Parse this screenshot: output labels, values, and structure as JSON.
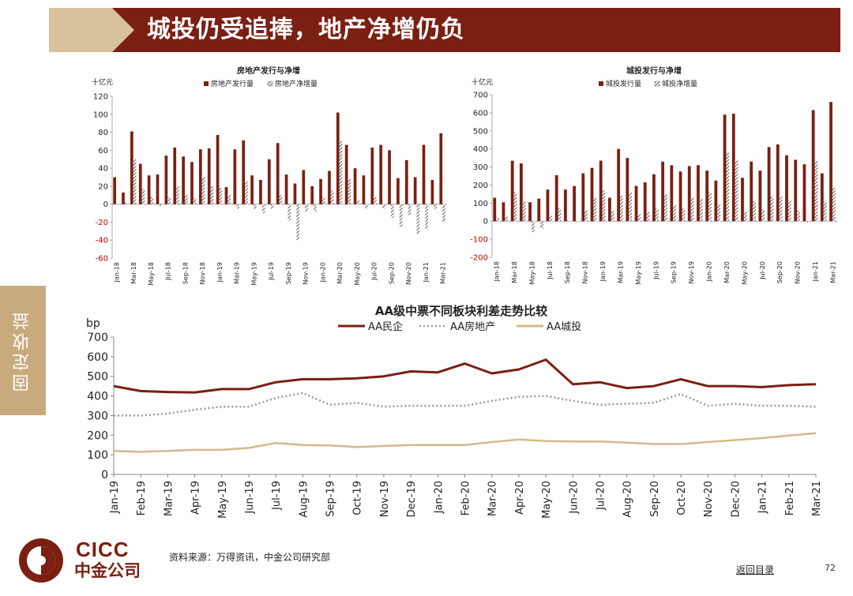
{
  "header": {
    "title": "城投仍受追捧，地产净增仍负"
  },
  "sidebar": {
    "label": "固定收益"
  },
  "footer": {
    "source": "资料来源：万得资讯，中金公司研究部",
    "back_link": "返回目录",
    "page_number": "72"
  },
  "logo": {
    "en": "CICC",
    "cn": "中金公司"
  },
  "colors": {
    "brand": "#7b1f12",
    "tan": "#d8c29b",
    "net": "#333333",
    "pvt": "#7b1f12",
    "re_line": "#9a9a9a",
    "ct_line": "#d4b98c"
  },
  "chart_data": [
    {
      "type": "bar",
      "title": "房地产发行与净增",
      "unit": "十亿元",
      "ylim": [
        -60,
        120
      ],
      "yticks": [
        "120",
        "100",
        "80",
        "60",
        "40",
        "20",
        "0",
        "-20",
        "-40",
        "-60"
      ],
      "categories": [
        "Jan-18",
        "Feb-18",
        "Mar-18",
        "Apr-18",
        "May-18",
        "Jun-18",
        "Jul-18",
        "Aug-18",
        "Sep-18",
        "Oct-18",
        "Nov-18",
        "Dec-18",
        "Jan-19",
        "Feb-19",
        "Mar-19",
        "Apr-19",
        "May-19",
        "Jun-19",
        "Jul-19",
        "Aug-19",
        "Sep-19",
        "Oct-19",
        "Nov-19",
        "Dec-19",
        "Jan-20",
        "Feb-20",
        "Mar-20",
        "Apr-20",
        "May-20",
        "Jun-20",
        "Jul-20",
        "Aug-20",
        "Sep-20",
        "Oct-20",
        "Nov-20",
        "Dec-20",
        "Jan-21",
        "Feb-21",
        "Mar-21"
      ],
      "xtick_labels": [
        "Jan-18",
        "Mar-18",
        "May-18",
        "Jul-18",
        "Sep-18",
        "Nov-18",
        "Jan-19",
        "Mar-19",
        "May-19",
        "Jul-19",
        "Sep-19",
        "Nov-19",
        "Jan-20",
        "Mar-20",
        "May-20",
        "Jul-20",
        "Sep-20",
        "Nov-20",
        "Jan-21",
        "Mar-21"
      ],
      "series": [
        {
          "name": "房地产发行量",
          "values": [
            30,
            13,
            81,
            45,
            32,
            33,
            54,
            63,
            53,
            47,
            61,
            62,
            77,
            19,
            61,
            71,
            32,
            27,
            50,
            68,
            33,
            23,
            38,
            20,
            28,
            37,
            102,
            66,
            40,
            32,
            63,
            66,
            60,
            29,
            49,
            30,
            66,
            27,
            79
          ]
        },
        {
          "name": "房地产净增量",
          "values": [
            0,
            2,
            50,
            17,
            8,
            -2,
            8,
            20,
            10,
            7,
            30,
            20,
            18,
            10,
            -5,
            25,
            -5,
            -10,
            -5,
            10,
            -18,
            -40,
            -8,
            -8,
            8,
            15,
            70,
            28,
            5,
            -5,
            8,
            -5,
            -15,
            -25,
            -12,
            -33,
            -28,
            -5,
            -20
          ]
        }
      ]
    },
    {
      "type": "bar",
      "title": "城投发行与净增",
      "unit": "十亿元",
      "ylim": [
        -200,
        700
      ],
      "yticks": [
        "700",
        "600",
        "500",
        "400",
        "300",
        "200",
        "100",
        "0",
        "-100",
        "-200"
      ],
      "categories": [
        "Jan-18",
        "Feb-18",
        "Mar-18",
        "Apr-18",
        "May-18",
        "Jun-18",
        "Jul-18",
        "Aug-18",
        "Sep-18",
        "Oct-18",
        "Nov-18",
        "Dec-18",
        "Jan-19",
        "Feb-19",
        "Mar-19",
        "Apr-19",
        "May-19",
        "Jun-19",
        "Jul-19",
        "Aug-19",
        "Sep-19",
        "Oct-19",
        "Nov-19",
        "Dec-19",
        "Jan-20",
        "Feb-20",
        "Mar-20",
        "Apr-20",
        "May-20",
        "Jun-20",
        "Jul-20",
        "Aug-20",
        "Sep-20",
        "Oct-20",
        "Nov-20",
        "Dec-20",
        "Jan-21",
        "Feb-21",
        "Mar-21"
      ],
      "xtick_labels": [
        "Jan-18",
        "Mar-18",
        "May-18",
        "Jul-18",
        "Sep-18",
        "Nov-18",
        "Jan-19",
        "Mar-19",
        "May-19",
        "Jul-19",
        "Sep-19",
        "Nov-19",
        "Jan-20",
        "Mar-20",
        "May-20",
        "Jul-20",
        "Sep-20",
        "Nov-20",
        "Jan-21",
        "Mar-21"
      ],
      "series": [
        {
          "name": "城投发行量",
          "values": [
            130,
            105,
            335,
            320,
            105,
            125,
            175,
            255,
            175,
            195,
            265,
            295,
            335,
            130,
            400,
            350,
            195,
            215,
            260,
            330,
            310,
            275,
            305,
            310,
            280,
            225,
            590,
            595,
            240,
            330,
            280,
            410,
            425,
            365,
            340,
            315,
            615,
            265,
            660
          ]
        },
        {
          "name": "城投净增量",
          "values": [
            20,
            25,
            160,
            110,
            -60,
            -40,
            30,
            70,
            5,
            0,
            60,
            130,
            170,
            55,
            140,
            160,
            40,
            50,
            70,
            150,
            90,
            70,
            130,
            125,
            160,
            95,
            380,
            335,
            55,
            110,
            65,
            135,
            135,
            115,
            60,
            -5,
            335,
            110,
            185
          ]
        }
      ]
    },
    {
      "type": "line",
      "title": "AA级中票不同板块利差走势比较",
      "ylabel": "bp",
      "ylim": [
        0,
        700
      ],
      "yticks": [
        "700",
        "600",
        "500",
        "400",
        "300",
        "200",
        "100",
        "0"
      ],
      "categories": [
        "Jan-19",
        "Feb-19",
        "Mar-19",
        "Apr-19",
        "May-19",
        "Jun-19",
        "Jul-19",
        "Aug-19",
        "Sep-19",
        "Oct-19",
        "Nov-19",
        "Dec-19",
        "Jan-20",
        "Feb-20",
        "Mar-20",
        "Apr-20",
        "May-20",
        "Jun-20",
        "Jul-20",
        "Aug-20",
        "Sep-20",
        "Oct-20",
        "Nov-20",
        "Dec-20",
        "Jan-21",
        "Feb-21",
        "Mar-21"
      ],
      "series": [
        {
          "name": "AA民企",
          "values": [
            450,
            425,
            420,
            418,
            435,
            435,
            470,
            485,
            485,
            490,
            500,
            525,
            520,
            565,
            515,
            535,
            585,
            460,
            470,
            440,
            450,
            485,
            450,
            450,
            445,
            455,
            460
          ]
        },
        {
          "name": "AA房地产",
          "values": [
            300,
            300,
            310,
            330,
            345,
            345,
            390,
            415,
            355,
            365,
            345,
            350,
            350,
            350,
            375,
            395,
            400,
            375,
            355,
            360,
            365,
            410,
            350,
            360,
            350,
            350,
            345
          ]
        },
        {
          "name": "AA城投",
          "values": [
            120,
            115,
            120,
            125,
            125,
            135,
            160,
            150,
            148,
            140,
            145,
            150,
            150,
            150,
            165,
            178,
            170,
            168,
            168,
            162,
            155,
            155,
            165,
            175,
            185,
            198,
            210
          ]
        }
      ]
    }
  ]
}
